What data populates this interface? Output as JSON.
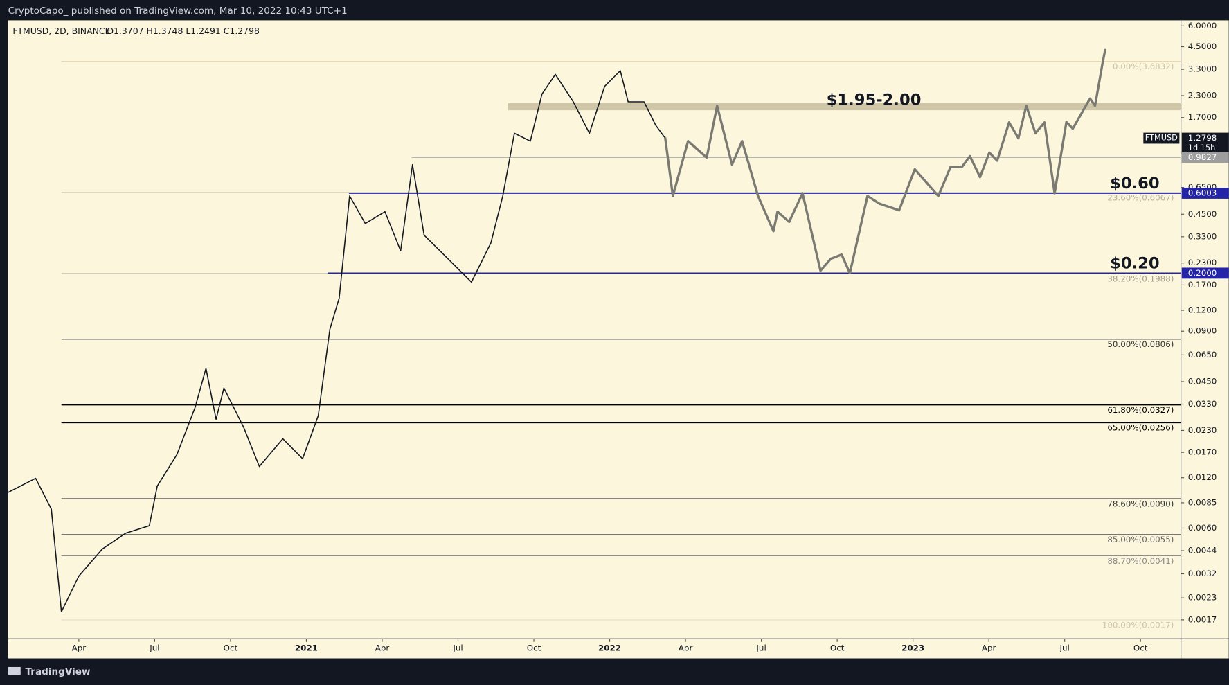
{
  "header": {
    "title": "CryptoCapo_  published on TradingView.com, Mar 10, 2022 10:43 UTC+1"
  },
  "footer": {
    "brand": "TradingView"
  },
  "chart_data": {
    "type": "line",
    "title": "FTMUSD, 2D, BINANCE",
    "ohlc": "O1.3707  H1.3748  L1.2491  C1.2798",
    "log_scale": true,
    "xlim": [
      0.2,
      46.6
    ],
    "xticks": [
      {
        "value": 3,
        "label": "Apr"
      },
      {
        "value": 6,
        "label": "Jul"
      },
      {
        "value": 9,
        "label": "Oct"
      },
      {
        "value": 12,
        "label": "2021"
      },
      {
        "value": 15,
        "label": "Apr"
      },
      {
        "value": 18,
        "label": "Jul"
      },
      {
        "value": 21,
        "label": "Oct"
      },
      {
        "value": 24,
        "label": "2022"
      },
      {
        "value": 27,
        "label": "Apr"
      },
      {
        "value": 30,
        "label": "Jul"
      },
      {
        "value": 33,
        "label": "Oct"
      },
      {
        "value": 36,
        "label": "2023"
      },
      {
        "value": 39,
        "label": "Apr"
      },
      {
        "value": 42,
        "label": "Jul"
      },
      {
        "value": 45,
        "label": "Oct"
      }
    ],
    "ylim": [
      0.00131,
      6.47
    ],
    "yticks": [
      {
        "value": 6,
        "label": "6.0000"
      },
      {
        "value": 4.5,
        "label": "4.5000"
      },
      {
        "value": 3.3,
        "label": "3.3000"
      },
      {
        "value": 2.3,
        "label": "2.3000"
      },
      {
        "value": 1.7,
        "label": "1.7000"
      },
      {
        "value": 0.65,
        "label": "0.6500"
      },
      {
        "value": 0.45,
        "label": "0.4500"
      },
      {
        "value": 0.33,
        "label": "0.3300"
      },
      {
        "value": 0.23,
        "label": "0.2300"
      },
      {
        "value": 0.17,
        "label": "0.1700"
      },
      {
        "value": 0.12,
        "label": "0.1200"
      },
      {
        "value": 0.09,
        "label": "0.0900"
      },
      {
        "value": 0.065,
        "label": "0.0650"
      },
      {
        "value": 0.045,
        "label": "0.0450"
      },
      {
        "value": 0.033,
        "label": "0.0330"
      },
      {
        "value": 0.023,
        "label": "0.0230"
      },
      {
        "value": 0.017,
        "label": "0.0170"
      },
      {
        "value": 0.012,
        "label": "0.0120"
      },
      {
        "value": 0.0085,
        "label": "0.0085"
      },
      {
        "value": 0.006,
        "label": "0.0060"
      },
      {
        "value": 0.0044,
        "label": "0.0044"
      },
      {
        "value": 0.0032,
        "label": "0.0032"
      },
      {
        "value": 0.0023,
        "label": "0.0023"
      },
      {
        "value": 0.0017,
        "label": "0.0017"
      }
    ],
    "series": [
      {
        "name": "FTMUSD",
        "color": "#131722",
        "x": [
          0.2,
          1.29,
          1.91,
          2.31,
          3.0,
          3.93,
          4.86,
          5.79,
          6.1,
          6.88,
          7.6,
          8.03,
          8.43,
          8.74,
          9.52,
          10.14,
          11.07,
          11.85,
          12.47,
          12.93,
          13.3,
          13.71,
          14.33,
          15.11,
          15.73,
          16.2,
          16.66,
          17.6,
          18.53,
          19.3,
          19.77,
          20.23,
          20.86,
          21.32,
          21.85,
          22.56,
          23.2,
          23.8,
          24.42,
          24.73,
          25.36,
          25.82,
          26.2
        ],
        "values": [
          0.0098,
          0.0119,
          0.0078,
          0.0019,
          0.0031,
          0.0045,
          0.0056,
          0.0062,
          0.0107,
          0.0165,
          0.0315,
          0.054,
          0.0268,
          0.0412,
          0.024,
          0.014,
          0.0205,
          0.0156,
          0.0282,
          0.0925,
          0.142,
          0.578,
          0.396,
          0.466,
          0.272,
          0.889,
          0.337,
          0.244,
          0.177,
          0.303,
          0.578,
          1.37,
          1.23,
          2.35,
          3.08,
          2.11,
          1.37,
          2.61,
          3.24,
          2.11,
          2.11,
          1.53,
          1.2798
        ]
      },
      {
        "color": "#7a7a72",
        "x": [
          26.2,
          26.5,
          27.1,
          27.84,
          28.25,
          28.84,
          29.24,
          29.87,
          30.48,
          30.64,
          31.1,
          31.63,
          32.34,
          32.75,
          33.18,
          33.5,
          34.2,
          34.67,
          35.45,
          36.07,
          37.0,
          37.48,
          37.93,
          38.25,
          38.65,
          39.02,
          39.33,
          39.8,
          40.17,
          40.48,
          40.84,
          41.2,
          41.6,
          42.07,
          42.32,
          42.7,
          43.0,
          43.2,
          43.5,
          43.6
        ],
        "values": [
          1.2798,
          0.578,
          1.23,
          0.98,
          2.0,
          0.889,
          1.23,
          0.578,
          0.356,
          0.466,
          0.405,
          0.6,
          0.207,
          0.244,
          0.258,
          0.2,
          0.578,
          0.52,
          0.475,
          0.835,
          0.578,
          0.86,
          0.86,
          1.0,
          0.75,
          1.05,
          0.94,
          1.59,
          1.28,
          2.0,
          1.37,
          1.59,
          0.6,
          1.6,
          1.46,
          1.84,
          2.21,
          2.0,
          3.61,
          4.3
        ]
      }
    ],
    "fib_levels": [
      {
        "value": 3.6832,
        "label": "0.00%(3.6832)",
        "color": "#ecd6b0",
        "text_color": "#cfc3a6"
      },
      {
        "value": 0.6067,
        "label": "23.60%(0.6067)",
        "color": "#c9c4b4",
        "text_color": "#b9b2a0"
      },
      {
        "value": 0.1988,
        "label": "38.20%(0.1988)",
        "color": "#a9a59a",
        "text_color": "#a39e90"
      },
      {
        "value": 0.0806,
        "label": "50.00%(0.0806)",
        "color": "#3c3c3c",
        "text_color": "#333333"
      },
      {
        "value": 0.0327,
        "label": "61.80%(0.0327)",
        "color": "#000000",
        "text_color": "#000000"
      },
      {
        "value": 0.0256,
        "label": "65.00%(0.0256)",
        "color": "#000000",
        "text_color": "#000000"
      },
      {
        "value": 0.009,
        "label": "78.60%(0.0090)",
        "color": "#444444",
        "text_color": "#333333"
      },
      {
        "value": 0.0055,
        "label": "85.00%(0.0055)",
        "color": "#777777",
        "text_color": "#666666"
      },
      {
        "value": 0.0041,
        "label": "88.70%(0.0041)",
        "color": "#8d8d8d",
        "text_color": "#8a8a8a"
      },
      {
        "value": 0.0017,
        "label": "100.00%(0.0017)",
        "color": "#e6dcc4",
        "text_color": "#cdc3ab"
      }
    ],
    "levels": [
      {
        "value": 0.6003,
        "label": "$0.60",
        "color": "#2424a8"
      },
      {
        "value": 0.2,
        "label": "$0.20",
        "color": "#2424a8"
      }
    ],
    "band": {
      "low": 1.95,
      "high": 2.0,
      "label": "$1.95-2.00",
      "color": "#cfc6a8"
    },
    "badges": [
      {
        "value": 1.2798,
        "label": "1.2798",
        "symbol": "FTMUSD",
        "countdown": "1d 15h",
        "color": "#131722"
      },
      {
        "value": 0.9827,
        "label": "0.9827",
        "color": "#9e9e9e",
        "line": true
      },
      {
        "value": 0.6003,
        "label": "0.6003",
        "color": "#2424a8"
      },
      {
        "value": 0.2,
        "label": "0.2000",
        "color": "#2424a8"
      }
    ]
  }
}
